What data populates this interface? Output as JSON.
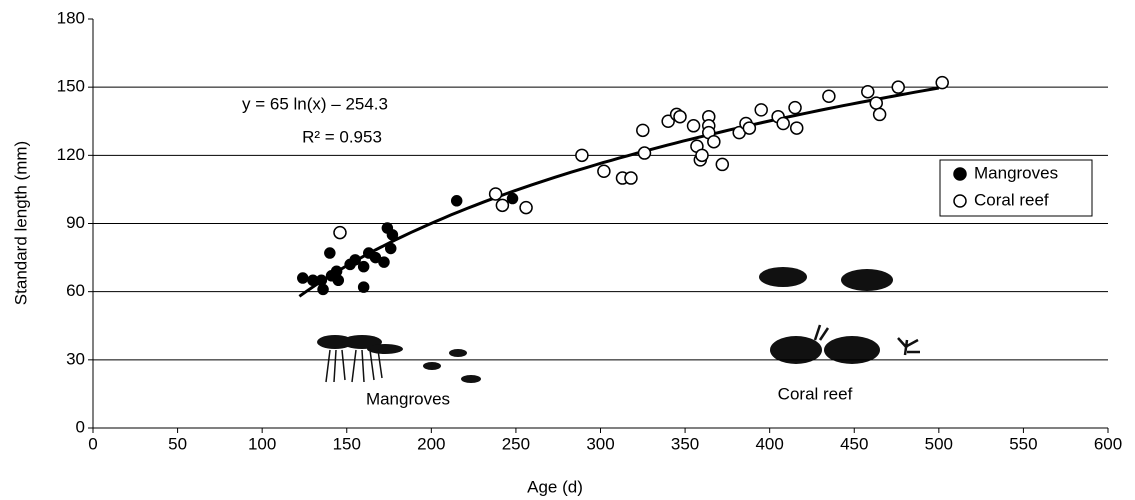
{
  "chart_data": {
    "type": "scatter",
    "xlabel": "Age (d)",
    "ylabel": "Standard length (mm)",
    "xlim": [
      0,
      600
    ],
    "xticks": [
      0,
      50,
      100,
      150,
      200,
      250,
      300,
      350,
      400,
      450,
      500,
      550,
      600
    ],
    "ylim": [
      0,
      180
    ],
    "yticks": [
      0,
      30,
      60,
      90,
      120,
      150,
      180
    ],
    "grid": true,
    "legend": "upper right",
    "equation": "y = 65 ln(x) – 254.3",
    "r_squared": "R² = 0.953",
    "trendline": {
      "coefficients": [
        65,
        -254.3
      ],
      "x": [
        122,
        500
      ],
      "color": "#000000"
    },
    "annotations": [
      "Mangroves",
      "Coral reef"
    ],
    "series": [
      {
        "name": "Mangroves",
        "marker": "filled",
        "color": "#000000",
        "x": [
          124,
          130,
          135,
          136,
          140,
          141,
          144,
          145,
          152,
          155,
          160,
          160,
          163,
          167,
          172,
          174,
          176,
          177,
          215,
          248
        ],
        "values": [
          66,
          65,
          65,
          61,
          77,
          67,
          69,
          65,
          72,
          74,
          71,
          62,
          77,
          75,
          73,
          88,
          79,
          85,
          100,
          101
        ]
      },
      {
        "name": "Coral reef",
        "marker": "open",
        "color": "#000000",
        "x": [
          146,
          238,
          242,
          256,
          289,
          302,
          313,
          318,
          325,
          326,
          340,
          345,
          347,
          355,
          357,
          359,
          360,
          364,
          364,
          364,
          367,
          372,
          382,
          386,
          388,
          395,
          405,
          408,
          415,
          416,
          435,
          458,
          463,
          465,
          476,
          502
        ],
        "values": [
          86,
          103,
          98,
          97,
          120,
          113,
          110,
          110,
          131,
          121,
          135,
          138,
          137,
          133,
          124,
          118,
          120,
          137,
          133,
          130,
          126,
          116,
          130,
          134,
          132,
          140,
          137,
          134,
          141,
          132,
          146,
          148,
          143,
          138,
          150,
          152
        ]
      }
    ]
  }
}
